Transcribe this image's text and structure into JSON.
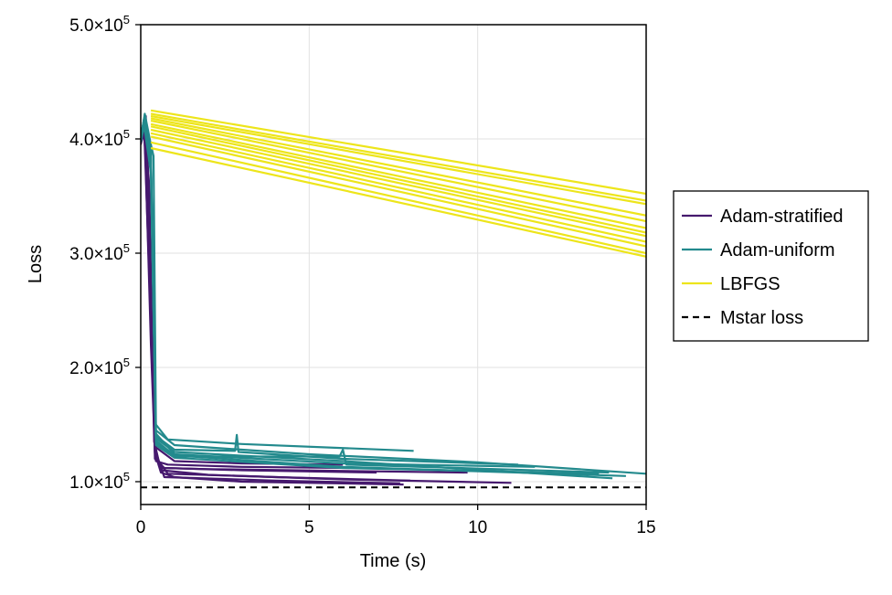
{
  "chart_data": {
    "type": "line",
    "xlabel": "Time (s)",
    "ylabel": "Loss",
    "xlim": [
      0,
      15
    ],
    "ylim": [
      80000,
      500000
    ],
    "x_ticks": [
      0,
      5,
      10,
      15
    ],
    "x_tick_labels": [
      "0",
      "5",
      "10",
      "15"
    ],
    "y_ticks": [
      100000,
      200000,
      300000,
      400000,
      500000
    ],
    "y_tick_labels": [
      {
        "mant": "1.0×10",
        "exp": "5"
      },
      {
        "mant": "2.0×10",
        "exp": "5"
      },
      {
        "mant": "3.0×10",
        "exp": "5"
      },
      {
        "mant": "4.0×10",
        "exp": "5"
      },
      {
        "mant": "5.0×10",
        "exp": "5"
      }
    ],
    "grid": true,
    "legend_position": "right",
    "series": [
      {
        "name": "Adam-stratified",
        "color": "#46196e",
        "style": "solid",
        "runs": [
          [
            [
              0,
              398000
            ],
            [
              0.1,
              418000
            ],
            [
              0.2,
              385000
            ],
            [
              0.3,
              260000
            ],
            [
              0.42,
              125000
            ],
            [
              0.6,
              108000
            ],
            [
              1,
              104000
            ],
            [
              3,
              100000
            ],
            [
              7.8,
              97500
            ]
          ],
          [
            [
              0,
              395000
            ],
            [
              0.12,
              412000
            ],
            [
              0.25,
              360000
            ],
            [
              0.4,
              135000
            ],
            [
              0.6,
              110000
            ],
            [
              2,
              106000
            ],
            [
              6,
              102000
            ],
            [
              11,
              99000
            ]
          ],
          [
            [
              0,
              400000
            ],
            [
              0.1,
              405000
            ],
            [
              0.25,
              330000
            ],
            [
              0.42,
              120000
            ],
            [
              0.7,
              112000
            ],
            [
              3,
              110000
            ],
            [
              7,
              108000
            ]
          ],
          [
            [
              0,
              402000
            ],
            [
              0.15,
              420000
            ],
            [
              0.28,
              300000
            ],
            [
              0.45,
              118000
            ],
            [
              0.8,
              115000
            ],
            [
              3,
              113000
            ],
            [
              6.2,
              112000
            ]
          ],
          [
            [
              0,
              397000
            ],
            [
              0.1,
              410000
            ],
            [
              0.3,
              240000
            ],
            [
              0.45,
              130000
            ],
            [
              1,
              118000
            ],
            [
              3,
              116000
            ],
            [
              6,
              115000
            ]
          ],
          [
            [
              0,
              399000
            ],
            [
              0.12,
              408000
            ],
            [
              0.3,
              250000
            ],
            [
              0.42,
              128000
            ],
            [
              0.7,
              104000
            ],
            [
              4,
              101000
            ],
            [
              7.7,
              98500
            ]
          ],
          [
            [
              0,
              401000
            ],
            [
              0.15,
              415000
            ],
            [
              0.28,
              280000
            ],
            [
              0.44,
              122000
            ],
            [
              0.8,
              107000
            ],
            [
              4,
              104000
            ],
            [
              8,
              101000
            ]
          ],
          [
            [
              0,
              396000
            ],
            [
              0.12,
              406000
            ],
            [
              0.3,
              220000
            ],
            [
              0.42,
              126000
            ],
            [
              0.6,
              112000
            ],
            [
              2,
              111000
            ],
            [
              9.7,
              108000
            ]
          ]
        ]
      },
      {
        "name": "Adam-uniform",
        "color": "#238a8d",
        "style": "solid",
        "runs": [
          [
            [
              0,
              400000
            ],
            [
              0.12,
              422000
            ],
            [
              0.3,
              395000
            ],
            [
              0.38,
              385000
            ],
            [
              0.45,
              150000
            ],
            [
              0.8,
              137000
            ],
            [
              3,
              133000
            ],
            [
              8.1,
              127000
            ]
          ],
          [
            [
              0,
              398000
            ],
            [
              0.1,
              415000
            ],
            [
              0.3,
              390000
            ],
            [
              0.45,
              145000
            ],
            [
              1,
              132000
            ],
            [
              5,
              124000
            ],
            [
              10,
              117000
            ],
            [
              15,
              107000
            ]
          ],
          [
            [
              0,
              402000
            ],
            [
              0.12,
              420000
            ],
            [
              0.3,
              380000
            ],
            [
              0.45,
              140000
            ],
            [
              1,
              128000
            ],
            [
              2.8,
              127000
            ],
            [
              2.85,
              141000
            ],
            [
              2.9,
              126000
            ],
            [
              6,
              120000
            ],
            [
              11.2,
              115000
            ]
          ],
          [
            [
              0,
              399000
            ],
            [
              0.1,
              418000
            ],
            [
              0.3,
              385000
            ],
            [
              0.45,
              138000
            ],
            [
              1,
              126000
            ],
            [
              6,
              118000
            ],
            [
              14,
              103000
            ]
          ],
          [
            [
              0,
              401000
            ],
            [
              0.12,
              416000
            ],
            [
              0.3,
              375000
            ],
            [
              0.45,
              142000
            ],
            [
              1,
              124000
            ],
            [
              6,
              116000
            ],
            [
              11.7,
              113000
            ]
          ],
          [
            [
              0,
              397000
            ],
            [
              0.1,
              412000
            ],
            [
              0.3,
              370000
            ],
            [
              0.45,
              136000
            ],
            [
              1,
              123000
            ],
            [
              6,
              113000
            ],
            [
              14.4,
              105000
            ]
          ],
          [
            [
              0,
              400000
            ],
            [
              0.12,
              419000
            ],
            [
              0.3,
              388000
            ],
            [
              0.45,
              134000
            ],
            [
              1,
              122000
            ],
            [
              5.9,
              122000
            ],
            [
              6,
              128000
            ],
            [
              6.1,
              115000
            ],
            [
              13.9,
              108000
            ]
          ],
          [
            [
              0,
              403000
            ],
            [
              0.1,
              417000
            ],
            [
              0.3,
              382000
            ],
            [
              0.45,
              132000
            ],
            [
              1,
              121000
            ],
            [
              6,
              112000
            ],
            [
              13.6,
              107000
            ]
          ]
        ]
      },
      {
        "name": "LBFGS",
        "color": "#ede51b",
        "style": "solid",
        "runs": [
          [
            [
              0.3,
              425000
            ],
            [
              15,
              352000
            ]
          ],
          [
            [
              0.3,
              422000
            ],
            [
              15,
              346000
            ]
          ],
          [
            [
              0.3,
              420000
            ],
            [
              15,
              343000
            ]
          ],
          [
            [
              0.3,
              418000
            ],
            [
              15,
              333000
            ]
          ],
          [
            [
              0.3,
              416000
            ],
            [
              15,
              328000
            ]
          ],
          [
            [
              0.3,
              413000
            ],
            [
              15,
              322000
            ]
          ],
          [
            [
              0.3,
              411000
            ],
            [
              15,
              318000
            ]
          ],
          [
            [
              0.3,
              408000
            ],
            [
              15,
              315000
            ]
          ],
          [
            [
              0.3,
              405000
            ],
            [
              15,
              310000
            ]
          ],
          [
            [
              0.3,
              402000
            ],
            [
              15,
              306000
            ]
          ],
          [
            [
              0.3,
              397000
            ],
            [
              15,
              300000
            ]
          ],
          [
            [
              0.3,
              392000
            ],
            [
              15,
              297000
            ]
          ]
        ]
      },
      {
        "name": "Mstar loss",
        "color": "#000000",
        "style": "dashed",
        "runs": [
          [
            [
              0,
              95000
            ],
            [
              15,
              95000
            ]
          ]
        ]
      }
    ]
  }
}
